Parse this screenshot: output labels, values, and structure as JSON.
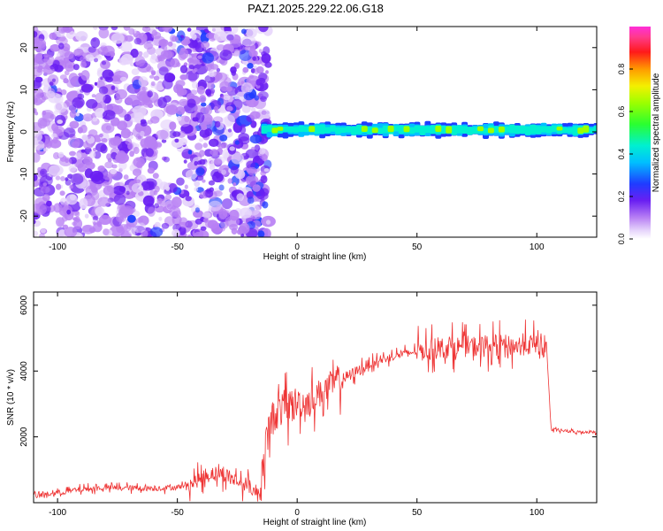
{
  "title": "PAZ1.2025.229.22.06.G18",
  "chart_data": [
    {
      "type": "heatmap",
      "xlabel": "Height of straight line (km)",
      "ylabel": "Frequency (Hz)",
      "xlim": [
        -110,
        125
      ],
      "ylim": [
        -25,
        25
      ],
      "xticks": [
        -100,
        -50,
        0,
        50,
        100
      ],
      "yticks": [
        -20,
        -10,
        0,
        10,
        20
      ],
      "colorbar": {
        "label": "Normalized spectral amplitude",
        "range": [
          0,
          1
        ],
        "ticks": [
          0.0,
          0.2,
          0.4,
          0.6,
          0.8
        ],
        "tick_labels": [
          "0.0",
          "0.2",
          "0.4",
          "0.6",
          "0.8"
        ],
        "colormap": "rainbow (magenta-blue-cyan-green-yellow-red-pink)"
      },
      "description_features": {
        "noise_region_x": [
          -110,
          -15
        ],
        "signal_band_x": [
          -15,
          125
        ],
        "signal_band_frequency_hz": 0.5,
        "signal_band_halfwidth_hz": 1.5,
        "peak_amplitude_in_band": 0.85
      }
    },
    {
      "type": "line",
      "xlabel": "Height of straight line (km)",
      "ylabel": "SNR (10 * v/v)",
      "xlim": [
        -110,
        125
      ],
      "ylim": [
        0,
        6400
      ],
      "xticks": [
        -100,
        -50,
        0,
        50,
        100
      ],
      "yticks": [
        2000,
        4000,
        6000
      ],
      "color": "#ee3333",
      "series": [
        {
          "x": [
            -110,
            -100,
            -90,
            -80,
            -70,
            -60,
            -50,
            -45,
            -40,
            -35,
            -30,
            -25,
            -20,
            -16,
            -14,
            -12,
            -10,
            -8,
            -5,
            0,
            5,
            10,
            15,
            20,
            25,
            30,
            40,
            50,
            60,
            70,
            80,
            85,
            90,
            95,
            100,
            104,
            106,
            110,
            115,
            120,
            125
          ],
          "y": [
            200,
            300,
            400,
            450,
            450,
            430,
            470,
            550,
            750,
            900,
            850,
            650,
            500,
            200,
            1100,
            2200,
            2600,
            2800,
            2900,
            3000,
            3100,
            3350,
            3600,
            3800,
            4000,
            4200,
            4450,
            4600,
            4700,
            4750,
            4750,
            4800,
            4750,
            4800,
            4800,
            4850,
            2200,
            2200,
            2150,
            2150,
            2150
          ]
        }
      ]
    }
  ]
}
